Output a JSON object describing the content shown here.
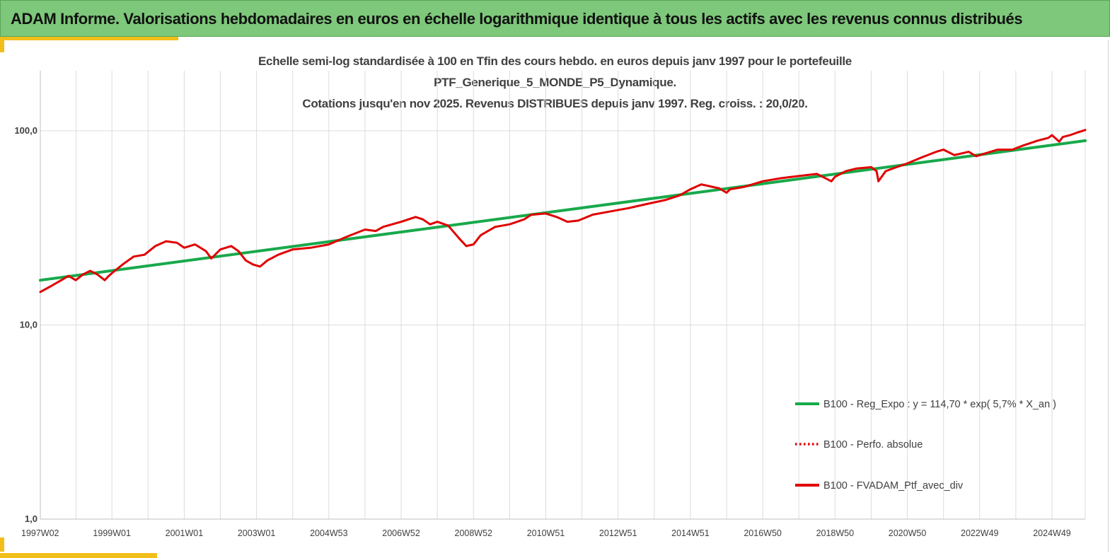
{
  "banner": {
    "title": "ADAM Informe. Valorisations hebdomadaires en euros en échelle logarithmique identique à tous les actifs avec les revenus connus distribués"
  },
  "colors": {
    "banner_bg": "#7dc87a",
    "accent": "#f2be1a",
    "series_portfolio": "#e00000",
    "series_regression": "#18a94b",
    "grid": "#dcdcdc"
  },
  "chart_data": {
    "type": "line",
    "title_lines": [
      "Echelle semi-log standardisée à 100 en Tfin des cours hebdo.  en euros depuis janv 1997 pour le portefeuille",
      "PTF_Generique_5_MONDE_P5_Dynamique.",
      "Cotations jusqu'en nov 2025. Revenus DISTRIBUES depuis janv 1997. Reg. croiss. : 20,0/20."
    ],
    "xlabel": "",
    "ylabel": "",
    "y_scale": "log",
    "ylim": [
      1,
      100
    ],
    "y_ticks": [
      {
        "value": 1,
        "label": "1,0"
      },
      {
        "value": 10,
        "label": "10,0"
      },
      {
        "value": 100,
        "label": "100,0"
      }
    ],
    "x_range": [
      1997.02,
      2025.92
    ],
    "x_ticks": [
      {
        "value": 1997.02,
        "label": "1997W02"
      },
      {
        "value": 1999.0,
        "label": "1999W01"
      },
      {
        "value": 2001.0,
        "label": "2001W01"
      },
      {
        "value": 2003.0,
        "label": "2003W01"
      },
      {
        "value": 2005.0,
        "label": "2004W53"
      },
      {
        "value": 2007.0,
        "label": "2006W52"
      },
      {
        "value": 2009.0,
        "label": "2008W52"
      },
      {
        "value": 2011.0,
        "label": "2010W51"
      },
      {
        "value": 2013.0,
        "label": "2012W51"
      },
      {
        "value": 2015.0,
        "label": "2014W51"
      },
      {
        "value": 2017.0,
        "label": "2016W50"
      },
      {
        "value": 2019.0,
        "label": "2018W50"
      },
      {
        "value": 2021.0,
        "label": "2020W50"
      },
      {
        "value": 2023.0,
        "label": "2022W49"
      },
      {
        "value": 2025.0,
        "label": "2024W49"
      }
    ],
    "grid": true,
    "legend_position": "bottom-right",
    "series": [
      {
        "name": "B100 - Reg_Expo : y = 114,70 * exp( 5,7% *  X_an )",
        "style": "solid-thick",
        "color": "#18a94b",
        "x": [
          1997.02,
          2025.92
        ],
        "y": [
          17.0,
          89.0
        ]
      },
      {
        "name": "B100 - Perfo. absolue",
        "style": "dotted",
        "color": "#e00000",
        "x": [],
        "y": []
      },
      {
        "name": "B100 - FVADAM_Ptf_avec_div",
        "style": "solid-thick",
        "color": "#e00000",
        "x": [
          1997.02,
          1997.3,
          1997.6,
          1997.8,
          1998.0,
          1998.2,
          1998.4,
          1998.6,
          1998.8,
          1998.9,
          1999.0,
          1999.3,
          1999.6,
          1999.9,
          2000.2,
          2000.5,
          2000.8,
          2001.0,
          2001.3,
          2001.6,
          2001.75,
          2002.0,
          2002.3,
          2002.5,
          2002.7,
          2002.9,
          2003.1,
          2003.3,
          2003.6,
          2004.0,
          2004.5,
          2005.0,
          2005.5,
          2006.0,
          2006.3,
          2006.5,
          2007.0,
          2007.4,
          2007.6,
          2007.8,
          2008.0,
          2008.3,
          2008.6,
          2008.8,
          2009.0,
          2009.2,
          2009.6,
          2010.0,
          2010.4,
          2010.6,
          2011.0,
          2011.3,
          2011.6,
          2011.9,
          2012.3,
          2012.8,
          2013.3,
          2013.8,
          2014.3,
          2014.7,
          2015.0,
          2015.3,
          2015.6,
          2015.8,
          2016.0,
          2016.1,
          2016.5,
          2017.0,
          2017.5,
          2018.0,
          2018.5,
          2018.9,
          2019.0,
          2019.3,
          2019.6,
          2020.0,
          2020.15,
          2020.2,
          2020.4,
          2020.7,
          2021.0,
          2021.4,
          2021.8,
          2022.0,
          2022.3,
          2022.7,
          2022.9,
          2023.2,
          2023.5,
          2023.9,
          2024.2,
          2024.6,
          2024.9,
          2025.0,
          2025.2,
          2025.3,
          2025.5,
          2025.7,
          2025.92
        ],
        "y": [
          14.8,
          15.8,
          17.0,
          17.9,
          17.0,
          18.2,
          19.0,
          18.2,
          17.0,
          17.8,
          18.5,
          20.5,
          22.5,
          23.0,
          25.5,
          27.0,
          26.5,
          25.0,
          26.0,
          24.0,
          22.0,
          24.5,
          25.5,
          24.0,
          21.5,
          20.5,
          20.0,
          21.5,
          23.0,
          24.5,
          25.0,
          26.0,
          28.5,
          31.0,
          30.5,
          32.0,
          34.0,
          36.0,
          35.0,
          33.0,
          34.0,
          32.5,
          28.0,
          25.5,
          26.0,
          29.0,
          32.0,
          33.0,
          35.0,
          37.0,
          37.5,
          36.0,
          34.0,
          34.5,
          37.0,
          38.5,
          40.0,
          42.0,
          44.0,
          46.5,
          50.0,
          53.0,
          51.5,
          50.5,
          48.0,
          50.0,
          51.5,
          55.0,
          57.0,
          58.5,
          60.0,
          55.0,
          58.0,
          62.0,
          64.0,
          65.0,
          62.0,
          55.0,
          62.0,
          65.0,
          68.0,
          73.0,
          78.0,
          80.0,
          75.0,
          78.0,
          74.0,
          77.0,
          80.0,
          80.0,
          84.0,
          89.0,
          92.0,
          95.0,
          88.0,
          93.0,
          95.0,
          98.0,
          101.0
        ]
      }
    ]
  }
}
